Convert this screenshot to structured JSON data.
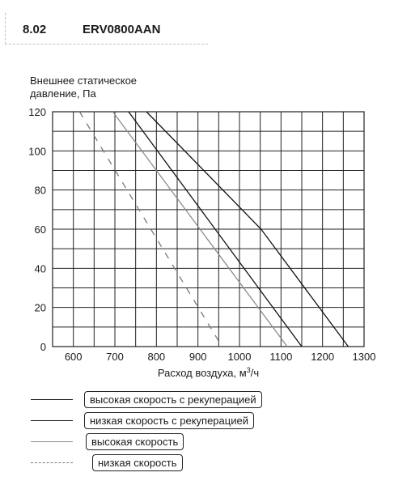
{
  "header": {
    "section": "8.02",
    "model": "ERV0800AAN"
  },
  "chart_data": {
    "type": "line",
    "ylabel_lines": [
      "Внешнее статическое",
      "давление, Па"
    ],
    "xlabel": "Расход воздуха, м³/ч",
    "xlabel_parts": {
      "main": "Расход воздуха, м",
      "sup": "3",
      "tail": "/ч"
    },
    "xlim": [
      550,
      1300
    ],
    "ylim": [
      0,
      120
    ],
    "x_ticks": [
      600,
      700,
      800,
      900,
      1000,
      1100,
      1200,
      1300
    ],
    "y_ticks": [
      0,
      20,
      40,
      60,
      80,
      100,
      120
    ],
    "grid": true,
    "series": [
      {
        "name": "высокая скорость с рекуперацией",
        "color": "#111111",
        "dash": "",
        "x": [
          776,
          1052,
          1262
        ],
        "y": [
          120,
          60,
          0
        ]
      },
      {
        "name": "низкая скорость с рекуперацией",
        "color": "#111111",
        "dash": "",
        "x": [
          733,
          1150
        ],
        "y": [
          120,
          0
        ]
      },
      {
        "name": "высокая скорость",
        "color": "#8c8c8c",
        "dash": "",
        "x": [
          695,
          1115
        ],
        "y": [
          120,
          0
        ]
      },
      {
        "name": "низкая скорость",
        "color": "#777777",
        "dash": "8,9",
        "x": [
          615,
          958
        ],
        "y": [
          120,
          0
        ]
      }
    ]
  }
}
